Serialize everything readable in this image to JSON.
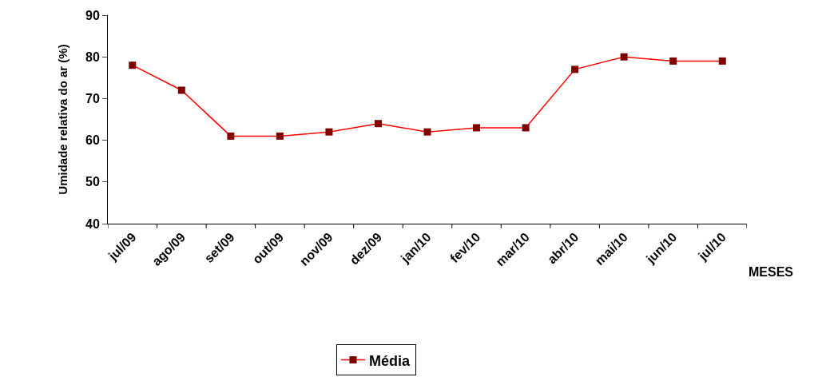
{
  "chart_data": {
    "type": "line",
    "xlabel": "MESES",
    "ylabel": "Umidade relativa do ar (%)",
    "categories": [
      "jul/09",
      "ago/09",
      "set/09",
      "out/09",
      "nov/09",
      "dez/09",
      "jan/10",
      "fev/10",
      "mar/10",
      "abr/10",
      "mai/10",
      "jun/10",
      "jul/10"
    ],
    "series": [
      {
        "name": "Média",
        "color": "#ff0000",
        "colors": [
          "#800000",
          "#800000",
          "#800000",
          "#800000",
          "#800000",
          "#800000",
          "#800000",
          "#800000",
          "#800000",
          "#800000",
          "#800000",
          "#800000",
          "#800000"
        ],
        "values": [
          78,
          72,
          61,
          61,
          62,
          64,
          62,
          63,
          63,
          77,
          80,
          79,
          79
        ]
      }
    ],
    "ylim": [
      40,
      90
    ],
    "yticks": [
      40,
      50,
      60,
      70,
      80,
      90
    ],
    "legend": "bottom",
    "marker": "square",
    "line_style": "solid"
  }
}
